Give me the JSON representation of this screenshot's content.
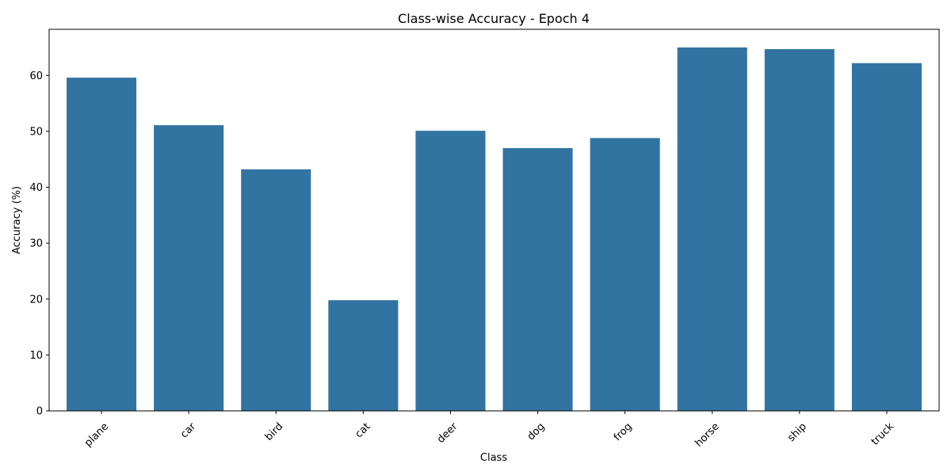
{
  "chart_data": {
    "type": "bar",
    "title": "Class-wise Accuracy - Epoch 4",
    "xlabel": "Class",
    "ylabel": "Accuracy (%)",
    "categories": [
      "plane",
      "car",
      "bird",
      "cat",
      "deer",
      "dog",
      "frog",
      "horse",
      "ship",
      "truck"
    ],
    "values": [
      59.6,
      51.1,
      43.2,
      19.8,
      50.1,
      47.0,
      48.8,
      65.0,
      64.7,
      62.2
    ],
    "ylim": [
      0,
      68.25
    ],
    "yticks": [
      0,
      10,
      20,
      30,
      40,
      50,
      60
    ],
    "xtick_rotation": 45,
    "grid": false,
    "legend": "none",
    "bar_color": "#3274a1"
  }
}
